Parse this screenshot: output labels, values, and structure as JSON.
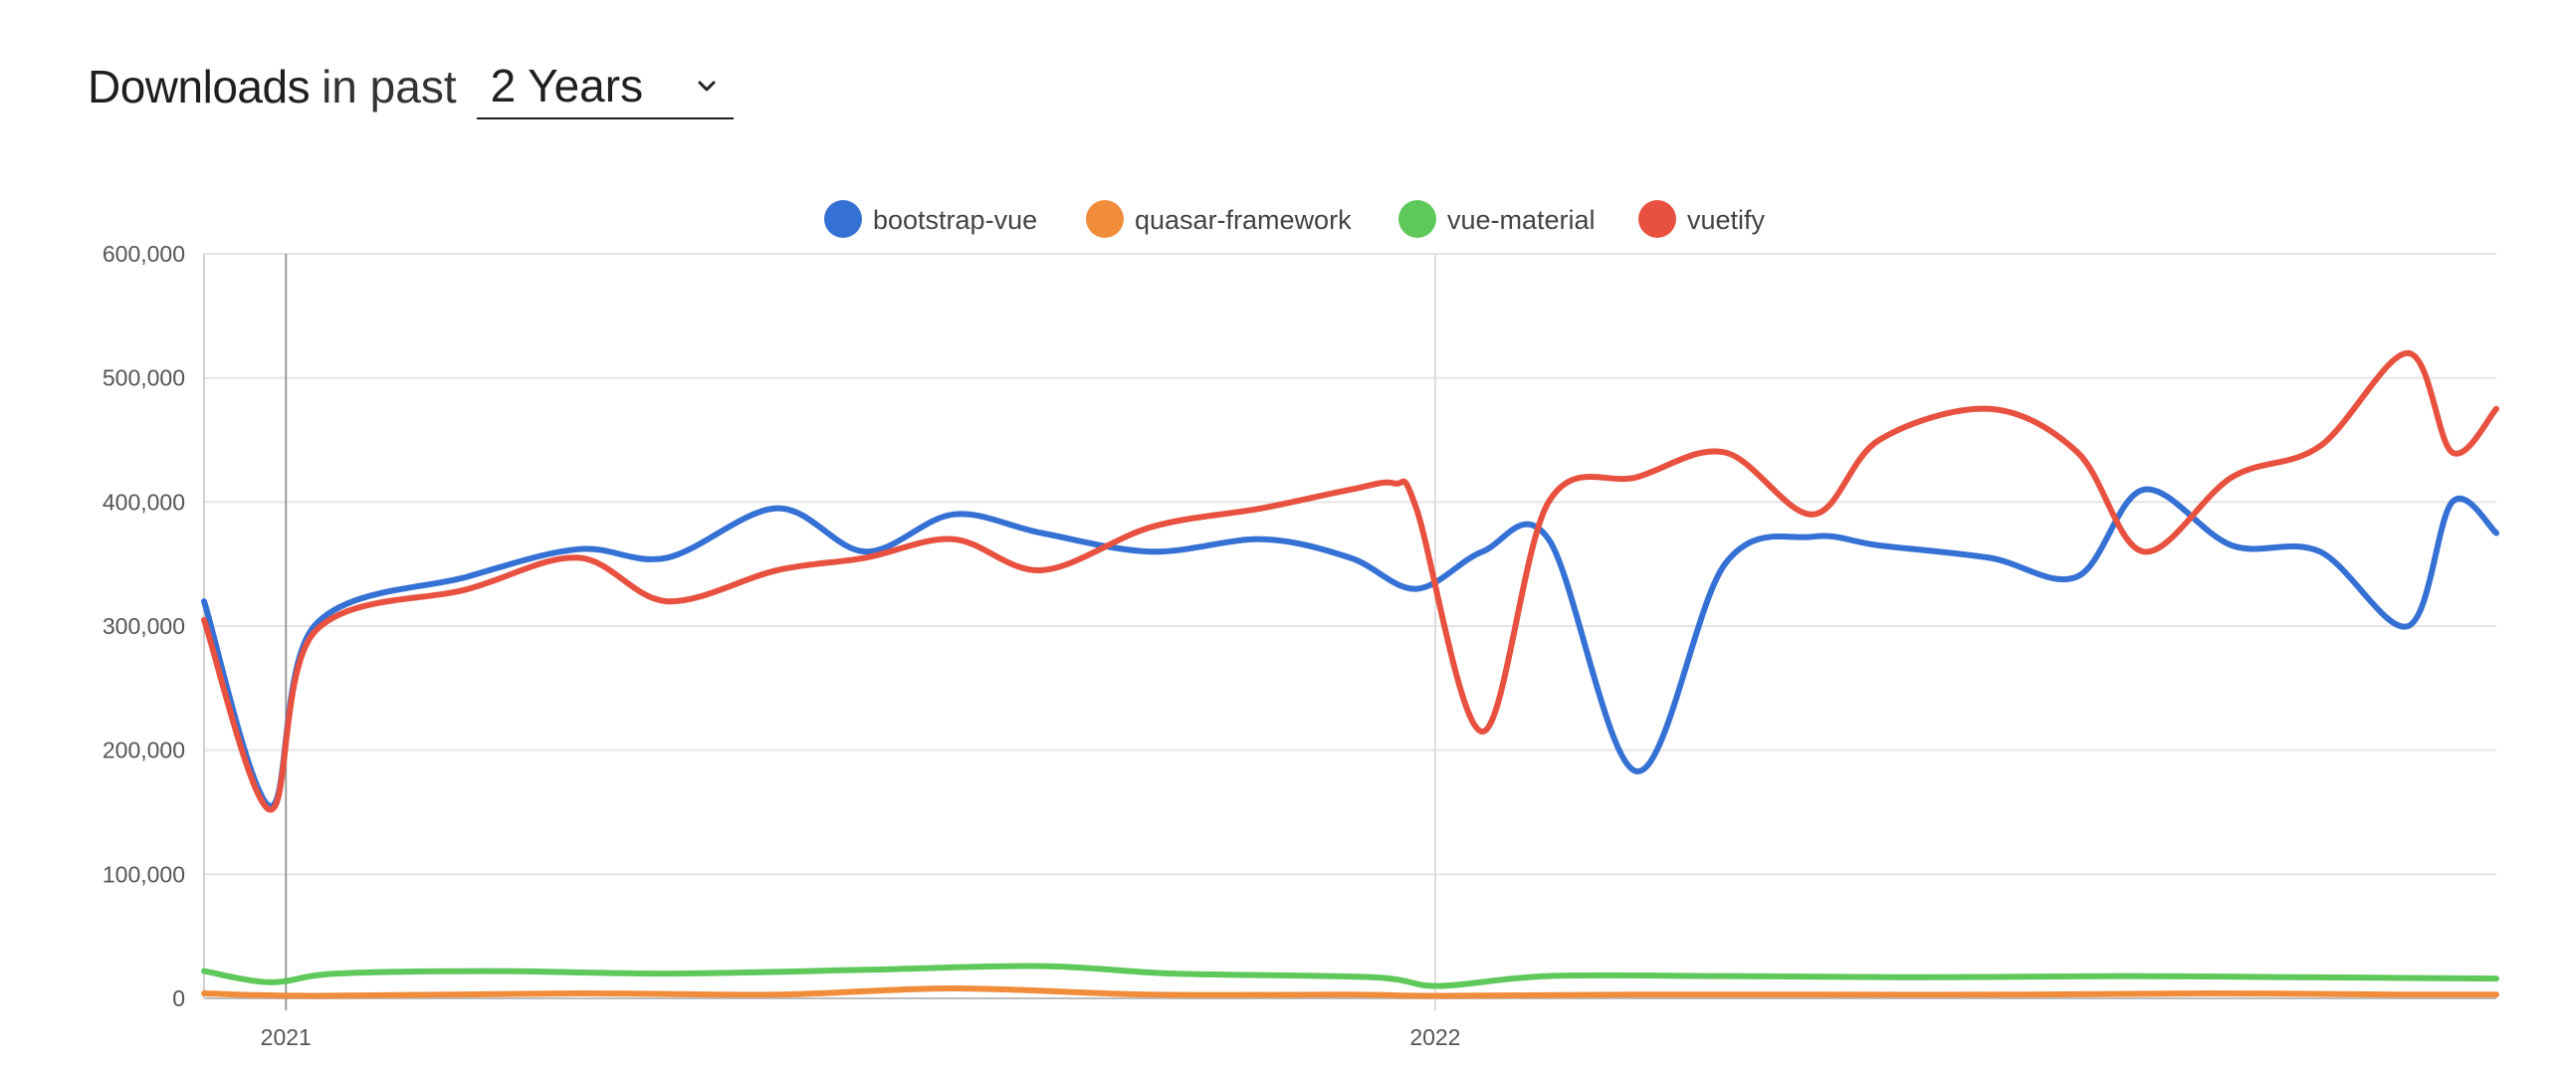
{
  "header": {
    "title_strong": "Downloads",
    "title_rest": "in past",
    "range_value": "2 Years"
  },
  "chart_data": {
    "type": "line",
    "xlabel": "",
    "ylabel": "",
    "ylim": [
      0,
      600000
    ],
    "xlim": [
      "2020-12-06",
      "2022-12-04"
    ],
    "legend_position": "top-center",
    "grid": true,
    "yticks": [
      0,
      100000,
      200000,
      300000,
      400000,
      500000,
      600000
    ],
    "ytick_labels": [
      "0",
      "100,000",
      "200,000",
      "300,000",
      "400,000",
      "500,000",
      "600,000"
    ],
    "xticks": [
      "2021-01-01",
      "2022-01-01"
    ],
    "xtick_labels": [
      "2021",
      "2022"
    ],
    "series": [
      {
        "name": "bootstrap-vue",
        "color": "#3571d4",
        "x": [
          "2020-12-06",
          "2020-12-27",
          "2021-01-10",
          "2021-02-28",
          "2021-04-04",
          "2021-05-02",
          "2021-06-06",
          "2021-07-04",
          "2021-08-01",
          "2021-08-29",
          "2021-10-03",
          "2021-11-07",
          "2021-12-05",
          "2021-12-26",
          "2022-01-16",
          "2022-02-06",
          "2022-03-06",
          "2022-04-03",
          "2022-05-01",
          "2022-05-22",
          "2022-06-26",
          "2022-07-24",
          "2022-08-14",
          "2022-09-11",
          "2022-10-09",
          "2022-11-06",
          "2022-11-20",
          "2022-12-04"
        ],
        "y": [
          320000,
          155000,
          300000,
          340000,
          362000,
          355000,
          395000,
          360000,
          390000,
          375000,
          360000,
          370000,
          355000,
          330000,
          360000,
          370000,
          183000,
          350000,
          372000,
          365000,
          355000,
          340000,
          410000,
          365000,
          360000,
          300000,
          400000,
          375000
        ]
      },
      {
        "name": "quasar-framework",
        "color": "#f08c3a",
        "x": [
          "2020-12-06",
          "2021-01-10",
          "2021-04-04",
          "2021-06-06",
          "2021-08-01",
          "2021-10-03",
          "2021-12-05",
          "2022-01-02",
          "2022-03-06",
          "2022-05-01",
          "2022-07-03",
          "2022-09-04",
          "2022-11-06",
          "2022-12-04"
        ],
        "y": [
          4000,
          2000,
          4000,
          3000,
          8000,
          3000,
          3000,
          2000,
          3000,
          3000,
          3000,
          4000,
          3000,
          3000
        ]
      },
      {
        "name": "vue-material",
        "color": "#5ec95a",
        "x": [
          "2020-12-06",
          "2020-12-27",
          "2021-01-17",
          "2021-03-07",
          "2021-05-02",
          "2021-07-04",
          "2021-08-29",
          "2021-10-10",
          "2021-12-12",
          "2022-01-02",
          "2022-02-06",
          "2022-04-03",
          "2022-06-05",
          "2022-08-07",
          "2022-10-02",
          "2022-12-04"
        ],
        "y": [
          22000,
          13000,
          20000,
          22000,
          20000,
          23000,
          26000,
          20000,
          17000,
          10000,
          18000,
          18000,
          17000,
          18000,
          17000,
          16000
        ]
      },
      {
        "name": "vuetify",
        "color": "#e8513f",
        "x": [
          "2020-12-06",
          "2020-12-27",
          "2021-01-10",
          "2021-02-28",
          "2021-04-04",
          "2021-05-02",
          "2021-06-06",
          "2021-07-04",
          "2021-08-01",
          "2021-08-29",
          "2021-10-03",
          "2021-11-07",
          "2021-12-05",
          "2021-12-19",
          "2021-12-26",
          "2022-01-16",
          "2022-02-06",
          "2022-03-06",
          "2022-04-03",
          "2022-05-01",
          "2022-05-22",
          "2022-06-26",
          "2022-07-24",
          "2022-08-14",
          "2022-09-11",
          "2022-10-09",
          "2022-11-06",
          "2022-11-20",
          "2022-12-04"
        ],
        "y": [
          305000,
          152000,
          295000,
          330000,
          355000,
          320000,
          345000,
          355000,
          370000,
          345000,
          380000,
          395000,
          410000,
          415000,
          395000,
          215000,
          400000,
          420000,
          440000,
          390000,
          450000,
          475000,
          440000,
          360000,
          420000,
          445000,
          520000,
          440000,
          475000
        ]
      }
    ]
  }
}
